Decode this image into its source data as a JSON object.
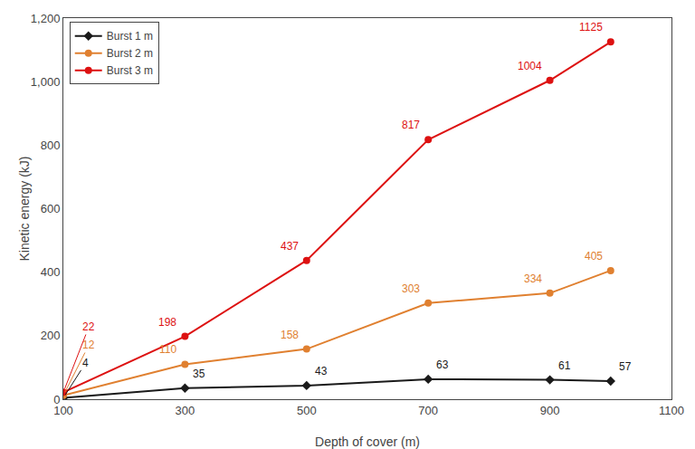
{
  "chart_data": {
    "type": "line",
    "xlabel": "Depth of cover (m)",
    "ylabel": "Kinetic energy (kJ)",
    "x": [
      100,
      300,
      500,
      700,
      900,
      1000
    ],
    "series": [
      {
        "name": "Burst 1 m",
        "color": "#1a1a1a",
        "marker": "diamond",
        "values": [
          4,
          35,
          43,
          63,
          61,
          57
        ]
      },
      {
        "name": "Burst 2 m",
        "color": "#e08030",
        "marker": "circle",
        "values": [
          12,
          110,
          158,
          303,
          334,
          405
        ]
      },
      {
        "name": "Burst 3 m",
        "color": "#dd1111",
        "marker": "circle",
        "values": [
          22,
          198,
          437,
          817,
          1004,
          1125
        ]
      }
    ],
    "xlim": [
      100,
      1100
    ],
    "xticks": [
      100,
      300,
      500,
      700,
      900,
      1100
    ],
    "ylim": [
      0,
      1200
    ],
    "yticks": [
      0,
      200,
      400,
      600,
      800,
      {
        "value": 1000,
        "label": "1,000"
      },
      {
        "value": 1200,
        "label": "1,200"
      }
    ],
    "grid": false,
    "legend": "upper left",
    "data_labels": true
  }
}
